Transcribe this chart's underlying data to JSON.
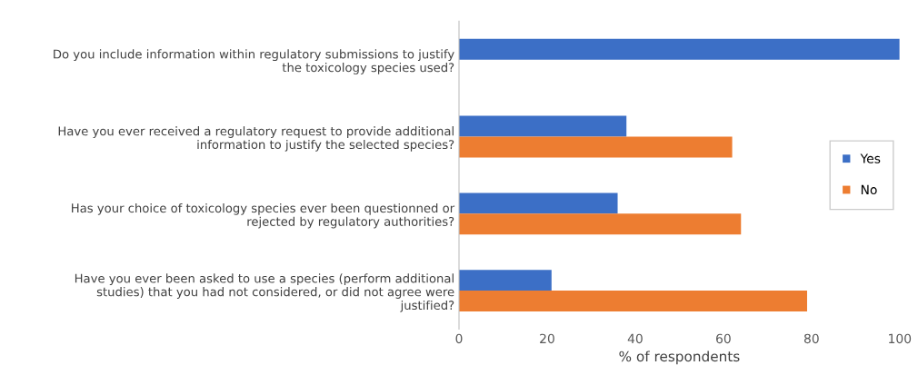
{
  "chart_data": {
    "type": "bar",
    "orientation": "horizontal",
    "xlabel": "% of respondents",
    "categories": [
      "Do you include information within regulatory submissions to justify\nthe toxicology species used?",
      "Have you ever received a regulatory request to provide additional\ninformation to justify the selected species?",
      "Has your choice of toxicology species ever been questionned or\nrejected by regulatory authorities?",
      "Have you ever been asked to use a species (perform additional\nstudies) that you had not considered, or did not agree were\njustified?"
    ],
    "series": [
      {
        "name": "Yes",
        "color": "#3c6fc6",
        "values": [
          100,
          38,
          36,
          21
        ]
      },
      {
        "name": "No",
        "color": "#ed7d31",
        "values": [
          0,
          62,
          64,
          79
        ]
      }
    ],
    "xlim": [
      0,
      100
    ],
    "xticks": [
      0,
      20,
      40,
      60,
      80,
      100
    ],
    "grid": false,
    "legend": "right"
  }
}
